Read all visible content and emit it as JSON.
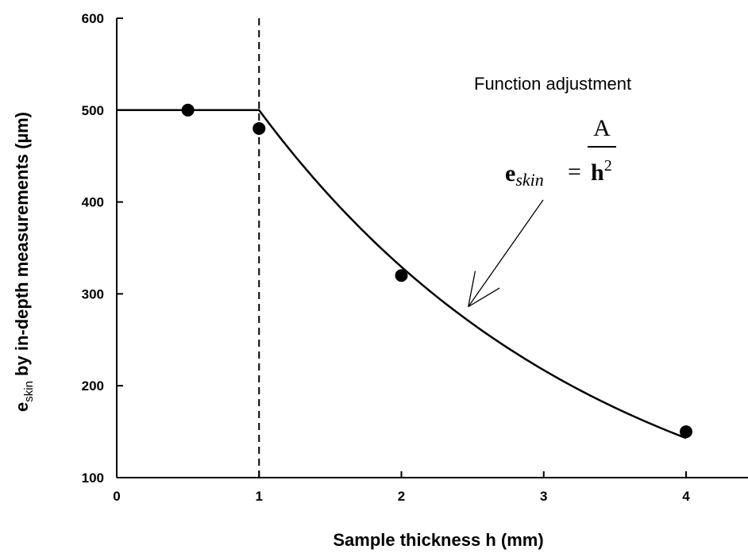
{
  "chart_data": {
    "type": "scatter",
    "xlabel": "Sample thickness h (mm)",
    "ylabel": {
      "main": "e",
      "sub": "skin",
      "rest": " by in-depth measurements (µm)"
    },
    "xlim": [
      0,
      4.5
    ],
    "ylim": [
      100,
      600
    ],
    "xticks": [
      "0",
      "1",
      "2",
      "3",
      "4"
    ],
    "yticks": [
      "100",
      "200",
      "300",
      "400",
      "500",
      "600"
    ],
    "grid": false,
    "series": [
      {
        "type": "scatter",
        "points": [
          {
            "x": 0.5,
            "y": 500
          },
          {
            "x": 1.0,
            "y": 480
          },
          {
            "x": 2.0,
            "y": 320
          },
          {
            "x": 4.0,
            "y": 150
          }
        ]
      },
      {
        "type": "line",
        "style": "solid",
        "plateau": {
          "x_start": 0,
          "x_end": 1,
          "y": 500
        },
        "decay_curve": {
          "x_start": 1,
          "x_end": 4,
          "y_at_start": 500,
          "y_at_end": 143
        }
      }
    ],
    "vertical_reference_line": {
      "x": 1,
      "style": "dashed"
    },
    "annotations": {
      "text": "Function adjustment",
      "formula": {
        "lhs_main": "e",
        "lhs_sub": "skin",
        "equals": "=",
        "numerator": "A",
        "denominator_base": "h",
        "denominator_exp": "2"
      },
      "arrow_to": {
        "x": 2.47,
        "y": 286
      }
    }
  }
}
